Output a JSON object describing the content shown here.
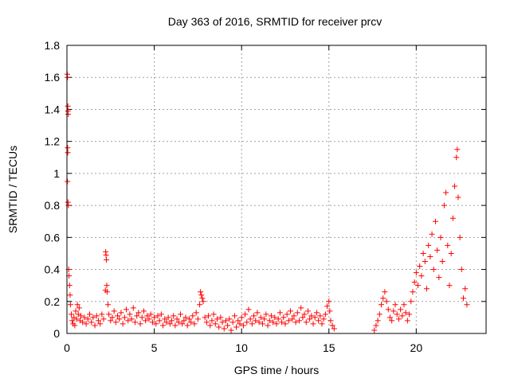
{
  "chart_data": {
    "type": "scatter",
    "title": "Day 363 of 2016, SRMTID for receiver prcv",
    "xlabel": "GPS time / hours",
    "ylabel": "SRMTID / TECUs",
    "xlim": [
      0,
      24
    ],
    "ylim": [
      0,
      1.8
    ],
    "xticks": [
      0,
      5,
      10,
      15,
      20
    ],
    "yticks": [
      0,
      0.2,
      0.4,
      0.6,
      0.8,
      1,
      1.2,
      1.4,
      1.6,
      1.8
    ],
    "xtick_labels": [
      "0",
      "5",
      "10",
      "15",
      "20"
    ],
    "ytick_labels": [
      "0",
      "0.2",
      "0.4",
      "0.6",
      "0.8",
      "1",
      "1.2",
      "1.4",
      "1.6",
      "1.8"
    ],
    "grid": true,
    "marker": "+",
    "color": "#ff0000",
    "series": [
      {
        "name": "SRMTID",
        "points": [
          [
            0.02,
            1.62
          ],
          [
            0.03,
            1.6
          ],
          [
            0.05,
            1.42
          ],
          [
            0.06,
            1.39
          ],
          [
            0.07,
            1.37
          ],
          [
            0.04,
            1.16
          ],
          [
            0.05,
            1.13
          ],
          [
            0.03,
            0.95
          ],
          [
            0.06,
            0.82
          ],
          [
            0.08,
            0.8
          ],
          [
            0.1,
            0.4
          ],
          [
            0.12,
            0.36
          ],
          [
            0.15,
            0.3
          ],
          [
            0.18,
            0.24
          ],
          [
            0.2,
            0.18
          ],
          [
            0.25,
            0.12
          ],
          [
            0.3,
            0.08
          ],
          [
            0.35,
            0.06
          ],
          [
            0.4,
            0.1
          ],
          [
            0.45,
            0.05
          ],
          [
            0.5,
            0.14
          ],
          [
            0.55,
            0.09
          ],
          [
            0.6,
            0.18
          ],
          [
            0.65,
            0.12
          ],
          [
            0.7,
            0.16
          ],
          [
            0.75,
            0.08
          ],
          [
            0.8,
            0.11
          ],
          [
            0.9,
            0.07
          ],
          [
            1.0,
            0.1
          ],
          [
            1.1,
            0.06
          ],
          [
            1.2,
            0.09
          ],
          [
            1.3,
            0.12
          ],
          [
            1.4,
            0.07
          ],
          [
            1.5,
            0.1
          ],
          [
            1.6,
            0.05
          ],
          [
            1.7,
            0.11
          ],
          [
            1.8,
            0.08
          ],
          [
            1.9,
            0.06
          ],
          [
            2.0,
            0.12
          ],
          [
            2.1,
            0.09
          ],
          [
            2.2,
            0.27
          ],
          [
            2.22,
            0.51
          ],
          [
            2.24,
            0.49
          ],
          [
            2.26,
            0.46
          ],
          [
            2.28,
            0.3
          ],
          [
            2.3,
            0.26
          ],
          [
            2.35,
            0.18
          ],
          [
            2.4,
            0.12
          ],
          [
            2.5,
            0.08
          ],
          [
            2.6,
            0.1
          ],
          [
            2.7,
            0.14
          ],
          [
            2.8,
            0.07
          ],
          [
            2.9,
            0.11
          ],
          [
            3.0,
            0.09
          ],
          [
            3.1,
            0.13
          ],
          [
            3.2,
            0.06
          ],
          [
            3.3,
            0.1
          ],
          [
            3.4,
            0.15
          ],
          [
            3.5,
            0.08
          ],
          [
            3.6,
            0.12
          ],
          [
            3.7,
            0.09
          ],
          [
            3.8,
            0.16
          ],
          [
            3.9,
            0.07
          ],
          [
            4.0,
            0.11
          ],
          [
            4.1,
            0.13
          ],
          [
            4.2,
            0.06
          ],
          [
            4.3,
            0.1
          ],
          [
            4.4,
            0.14
          ],
          [
            4.5,
            0.08
          ],
          [
            4.6,
            0.11
          ],
          [
            4.7,
            0.09
          ],
          [
            4.8,
            0.12
          ],
          [
            4.9,
            0.07
          ],
          [
            5.0,
            0.1
          ],
          [
            5.1,
            0.06
          ],
          [
            5.2,
            0.11
          ],
          [
            5.3,
            0.08
          ],
          [
            5.4,
            0.12
          ],
          [
            5.5,
            0.05
          ],
          [
            5.6,
            0.09
          ],
          [
            5.7,
            0.07
          ],
          [
            5.8,
            0.1
          ],
          [
            5.9,
            0.06
          ],
          [
            6.0,
            0.08
          ],
          [
            6.1,
            0.11
          ],
          [
            6.2,
            0.05
          ],
          [
            6.3,
            0.09
          ],
          [
            6.4,
            0.07
          ],
          [
            6.5,
            0.12
          ],
          [
            6.6,
            0.06
          ],
          [
            6.7,
            0.08
          ],
          [
            6.8,
            0.1
          ],
          [
            6.9,
            0.05
          ],
          [
            7.0,
            0.09
          ],
          [
            7.1,
            0.07
          ],
          [
            7.2,
            0.11
          ],
          [
            7.3,
            0.06
          ],
          [
            7.4,
            0.13
          ],
          [
            7.5,
            0.09
          ],
          [
            7.6,
            0.18
          ],
          [
            7.65,
            0.26
          ],
          [
            7.7,
            0.24
          ],
          [
            7.75,
            0.22
          ],
          [
            7.8,
            0.2
          ],
          [
            7.9,
            0.1
          ],
          [
            8.0,
            0.07
          ],
          [
            8.1,
            0.11
          ],
          [
            8.2,
            0.05
          ],
          [
            8.3,
            0.08
          ],
          [
            8.4,
            0.12
          ],
          [
            8.5,
            0.06
          ],
          [
            8.6,
            0.09
          ],
          [
            8.7,
            0.04
          ],
          [
            8.8,
            0.1
          ],
          [
            8.9,
            0.07
          ],
          [
            9.0,
            0.03
          ],
          [
            9.1,
            0.08
          ],
          [
            9.2,
            0.05
          ],
          [
            9.3,
            0.09
          ],
          [
            9.4,
            0.02
          ],
          [
            9.5,
            0.07
          ],
          [
            9.6,
            0.11
          ],
          [
            9.7,
            0.04
          ],
          [
            9.8,
            0.08
          ],
          [
            9.9,
            0.06
          ],
          [
            10.0,
            0.1
          ],
          [
            10.1,
            0.05
          ],
          [
            10.2,
            0.12
          ],
          [
            10.3,
            0.07
          ],
          [
            10.4,
            0.15
          ],
          [
            10.5,
            0.09
          ],
          [
            10.6,
            0.06
          ],
          [
            10.7,
            0.11
          ],
          [
            10.8,
            0.08
          ],
          [
            10.9,
            0.13
          ],
          [
            11.0,
            0.07
          ],
          [
            11.1,
            0.1
          ],
          [
            11.2,
            0.06
          ],
          [
            11.3,
            0.09
          ],
          [
            11.4,
            0.12
          ],
          [
            11.5,
            0.05
          ],
          [
            11.6,
            0.08
          ],
          [
            11.7,
            0.11
          ],
          [
            11.8,
            0.07
          ],
          [
            11.9,
            0.1
          ],
          [
            12.0,
            0.06
          ],
          [
            12.1,
            0.09
          ],
          [
            12.2,
            0.13
          ],
          [
            12.3,
            0.07
          ],
          [
            12.4,
            0.1
          ],
          [
            12.5,
            0.06
          ],
          [
            12.6,
            0.12
          ],
          [
            12.7,
            0.08
          ],
          [
            12.8,
            0.14
          ],
          [
            12.9,
            0.09
          ],
          [
            13.0,
            0.11
          ],
          [
            13.1,
            0.07
          ],
          [
            13.2,
            0.13
          ],
          [
            13.3,
            0.08
          ],
          [
            13.4,
            0.16
          ],
          [
            13.5,
            0.1
          ],
          [
            13.6,
            0.12
          ],
          [
            13.7,
            0.07
          ],
          [
            13.8,
            0.14
          ],
          [
            13.9,
            0.09
          ],
          [
            14.0,
            0.11
          ],
          [
            14.1,
            0.06
          ],
          [
            14.2,
            0.1
          ],
          [
            14.3,
            0.13
          ],
          [
            14.4,
            0.08
          ],
          [
            14.5,
            0.11
          ],
          [
            14.6,
            0.06
          ],
          [
            14.7,
            0.09
          ],
          [
            14.8,
            0.12
          ],
          [
            14.9,
            0.17
          ],
          [
            15.0,
            0.2
          ],
          [
            15.05,
            0.14
          ],
          [
            15.1,
            0.08
          ],
          [
            15.2,
            0.05
          ],
          [
            15.3,
            0.03
          ],
          [
            17.6,
            0.02
          ],
          [
            17.7,
            0.05
          ],
          [
            17.8,
            0.08
          ],
          [
            17.9,
            0.12
          ],
          [
            18.0,
            0.18
          ],
          [
            18.1,
            0.22
          ],
          [
            18.2,
            0.26
          ],
          [
            18.3,
            0.2
          ],
          [
            18.4,
            0.15
          ],
          [
            18.5,
            0.1
          ],
          [
            18.6,
            0.08
          ],
          [
            18.7,
            0.14
          ],
          [
            18.8,
            0.18
          ],
          [
            18.9,
            0.12
          ],
          [
            19.0,
            0.09
          ],
          [
            19.1,
            0.15
          ],
          [
            19.2,
            0.11
          ],
          [
            19.3,
            0.18
          ],
          [
            19.4,
            0.13
          ],
          [
            19.5,
            0.08
          ],
          [
            19.6,
            0.12
          ],
          [
            19.7,
            0.2
          ],
          [
            19.8,
            0.26
          ],
          [
            19.9,
            0.32
          ],
          [
            20.0,
            0.38
          ],
          [
            20.1,
            0.3
          ],
          [
            20.2,
            0.42
          ],
          [
            20.3,
            0.36
          ],
          [
            20.4,
            0.5
          ],
          [
            20.5,
            0.45
          ],
          [
            20.6,
            0.28
          ],
          [
            20.7,
            0.55
          ],
          [
            20.8,
            0.48
          ],
          [
            20.9,
            0.62
          ],
          [
            21.0,
            0.4
          ],
          [
            21.1,
            0.7
          ],
          [
            21.2,
            0.52
          ],
          [
            21.3,
            0.35
          ],
          [
            21.4,
            0.6
          ],
          [
            21.5,
            0.45
          ],
          [
            21.6,
            0.8
          ],
          [
            21.7,
            0.88
          ],
          [
            21.8,
            0.55
          ],
          [
            21.9,
            0.3
          ],
          [
            22.0,
            0.5
          ],
          [
            22.1,
            0.72
          ],
          [
            22.2,
            0.92
          ],
          [
            22.3,
            1.1
          ],
          [
            22.35,
            1.15
          ],
          [
            22.4,
            0.85
          ],
          [
            22.5,
            0.6
          ],
          [
            22.6,
            0.4
          ],
          [
            22.7,
            0.22
          ],
          [
            22.8,
            0.28
          ],
          [
            22.9,
            0.18
          ]
        ]
      }
    ]
  }
}
